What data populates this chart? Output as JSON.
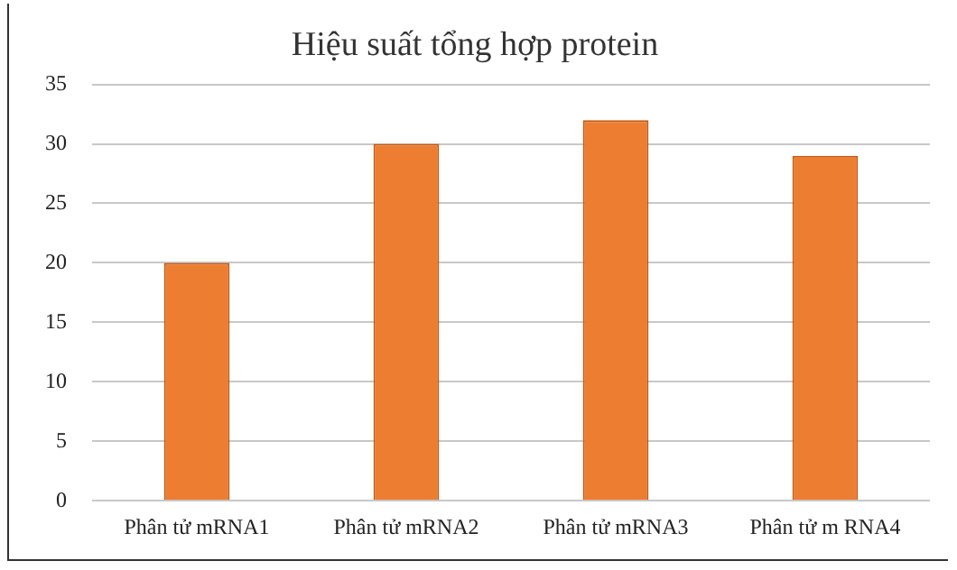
{
  "chart_data": {
    "type": "bar",
    "title": "Hiệu suất tổng hợp protein",
    "categories": [
      "Phân tử mRNA1",
      "Phân tử mRNA2",
      "Phân tử mRNA3",
      "Phân tử m RNA4"
    ],
    "values": [
      20,
      30,
      32,
      29
    ],
    "color": "#ed7d31",
    "ylim": [
      0,
      35
    ],
    "yticks": [
      0,
      5,
      10,
      15,
      20,
      25,
      30,
      35
    ],
    "grid": "y",
    "legend": false
  }
}
